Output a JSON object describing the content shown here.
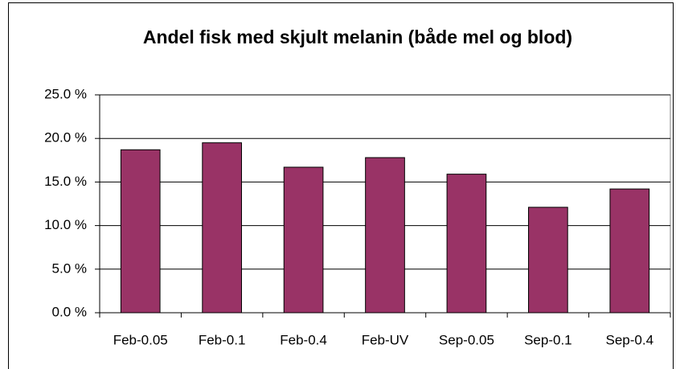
{
  "chart_data": {
    "type": "bar",
    "title": "Andel fisk med skjult melanin (både mel og blod)",
    "categories": [
      "Feb-0.05",
      "Feb-0.1",
      "Feb-0.4",
      "Feb-UV",
      "Sep-0.05",
      "Sep-0.1",
      "Sep-0.4"
    ],
    "values": [
      18.7,
      19.5,
      16.7,
      17.8,
      15.9,
      12.1,
      14.2
    ],
    "color": "#993366",
    "ylim": [
      0,
      25
    ],
    "yticks": [
      {
        "value": 0,
        "label": "0.0 %"
      },
      {
        "value": 5,
        "label": "5.0 %"
      },
      {
        "value": 10,
        "label": "10.0 %"
      },
      {
        "value": 15,
        "label": "15.0 %"
      },
      {
        "value": 20,
        "label": "20.0 %"
      },
      {
        "value": 25,
        "label": "25.0 %"
      }
    ],
    "grid": true
  }
}
